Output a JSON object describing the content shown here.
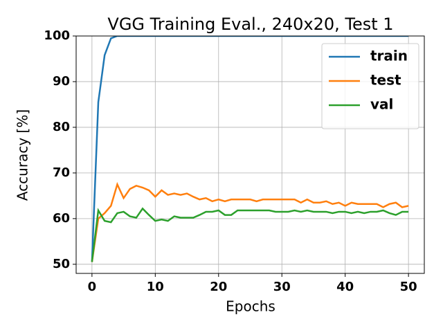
{
  "chart_data": {
    "type": "line",
    "title": "VGG Training Eval., 240x20, Test 1",
    "x_label": "Epochs",
    "y_label": "Accuracy [%]",
    "x": [
      0,
      1,
      2,
      3,
      4,
      5,
      6,
      7,
      8,
      9,
      10,
      11,
      12,
      13,
      14,
      15,
      16,
      17,
      18,
      19,
      20,
      21,
      22,
      23,
      24,
      25,
      26,
      27,
      28,
      29,
      30,
      31,
      32,
      33,
      34,
      35,
      36,
      37,
      38,
      39,
      40,
      41,
      42,
      43,
      44,
      45,
      46,
      47,
      48,
      49,
      50
    ],
    "series": [
      {
        "name": "train",
        "color": "#1f77b4",
        "values": [
          50.5,
          85.5,
          95.8,
          99.5,
          100,
          100,
          100,
          100,
          100,
          100,
          100,
          100,
          100,
          100,
          100,
          100,
          100,
          100,
          100,
          100,
          100,
          100,
          100,
          100,
          100,
          100,
          100,
          100,
          100,
          100,
          100,
          100,
          100,
          100,
          100,
          100,
          100,
          100,
          100,
          100,
          100,
          100,
          100,
          100,
          100,
          100,
          100,
          100,
          100,
          100,
          100
        ]
      },
      {
        "name": "test",
        "color": "#ff7f0e",
        "values": [
          50.5,
          60.0,
          61.2,
          62.8,
          67.5,
          64.5,
          66.5,
          67.2,
          66.8,
          66.2,
          64.8,
          66.2,
          65.2,
          65.5,
          65.2,
          65.5,
          64.8,
          64.2,
          64.5,
          63.8,
          64.2,
          63.8,
          64.2,
          64.2,
          64.2,
          64.2,
          63.8,
          64.2,
          64.2,
          64.2,
          64.2,
          64.2,
          64.2,
          63.5,
          64.2,
          63.5,
          63.5,
          63.8,
          63.2,
          63.5,
          62.8,
          63.5,
          63.2,
          63.2,
          63.2,
          63.2,
          62.5,
          63.2,
          63.5,
          62.5,
          62.8
        ]
      },
      {
        "name": "val",
        "color": "#2ca02c",
        "values": [
          50.5,
          61.8,
          59.5,
          59.2,
          61.2,
          61.5,
          60.5,
          60.2,
          62.2,
          60.8,
          59.5,
          59.8,
          59.5,
          60.5,
          60.2,
          60.2,
          60.2,
          60.8,
          61.5,
          61.5,
          61.8,
          60.8,
          60.8,
          61.8,
          61.8,
          61.8,
          61.8,
          61.8,
          61.8,
          61.5,
          61.5,
          61.5,
          61.8,
          61.5,
          61.8,
          61.5,
          61.5,
          61.5,
          61.2,
          61.5,
          61.5,
          61.2,
          61.5,
          61.2,
          61.5,
          61.5,
          61.8,
          61.2,
          60.8,
          61.5,
          61.5
        ]
      }
    ],
    "xlim": [
      -2.5,
      52.5
    ],
    "ylim": [
      48,
      100
    ],
    "xticks": [
      0,
      10,
      20,
      30,
      40,
      50
    ],
    "yticks": [
      50,
      60,
      70,
      80,
      90,
      100
    ],
    "grid": true,
    "legend": "upper right"
  }
}
